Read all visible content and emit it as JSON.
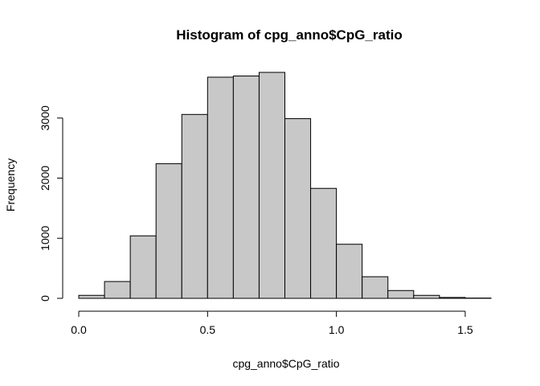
{
  "chart_data": {
    "type": "bar",
    "title": "Histogram of cpg_anno$CpG_ratio",
    "xlabel": "cpg_anno$CpG_ratio",
    "ylabel": "Frequency",
    "bin_edges": [
      0.0,
      0.1,
      0.2,
      0.3,
      0.4,
      0.5,
      0.6,
      0.7,
      0.8,
      0.9,
      1.0,
      1.1,
      1.2,
      1.3,
      1.4,
      1.5,
      1.6
    ],
    "values": [
      50,
      280,
      1040,
      2240,
      3060,
      3680,
      3700,
      3760,
      2990,
      1830,
      900,
      360,
      130,
      50,
      15,
      5
    ],
    "xlim": [
      0.0,
      1.6
    ],
    "ylim": [
      0,
      3760
    ],
    "x_ticks": [
      0.0,
      0.5,
      1.0,
      1.5
    ],
    "x_tick_labels": [
      "0.0",
      "0.5",
      "1.0",
      "1.5"
    ],
    "y_ticks": [
      0,
      1000,
      2000,
      3000
    ],
    "y_tick_labels": [
      "0",
      "1000",
      "2000",
      "3000"
    ],
    "bar_color": "#c8c8c8",
    "grid": false
  }
}
